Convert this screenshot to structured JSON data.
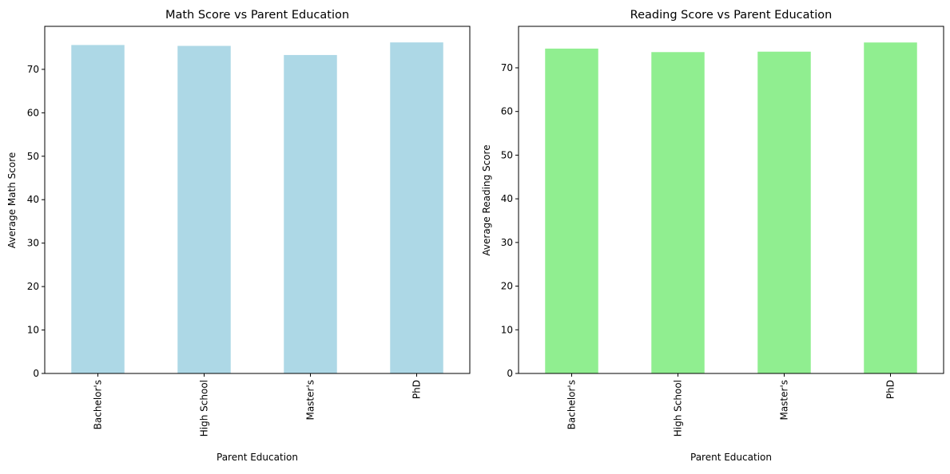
{
  "chart_data": [
    {
      "type": "bar",
      "title": "Math Score vs Parent Education",
      "xlabel": "Parent Education",
      "ylabel": "Average Math Score",
      "categories": [
        "Bachelor's",
        "High School",
        "Master's",
        "PhD"
      ],
      "values": [
        75.6,
        75.4,
        73.3,
        76.2
      ],
      "ylim": [
        0,
        79.9
      ],
      "yticks": [
        0,
        10,
        20,
        30,
        40,
        50,
        60,
        70
      ],
      "color": "#add8e6",
      "grid": false,
      "xtick_rotation": "vertical"
    },
    {
      "type": "bar",
      "title": "Reading Score vs Parent Education",
      "xlabel": "Parent Education",
      "ylabel": "Average Reading Score",
      "categories": [
        "Bachelor's",
        "High School",
        "Master's",
        "PhD"
      ],
      "values": [
        74.4,
        73.6,
        73.7,
        75.8
      ],
      "ylim": [
        0,
        79.5
      ],
      "yticks": [
        0,
        10,
        20,
        30,
        40,
        50,
        60,
        70
      ],
      "color": "#90ee90",
      "grid": false,
      "xtick_rotation": "vertical"
    }
  ]
}
